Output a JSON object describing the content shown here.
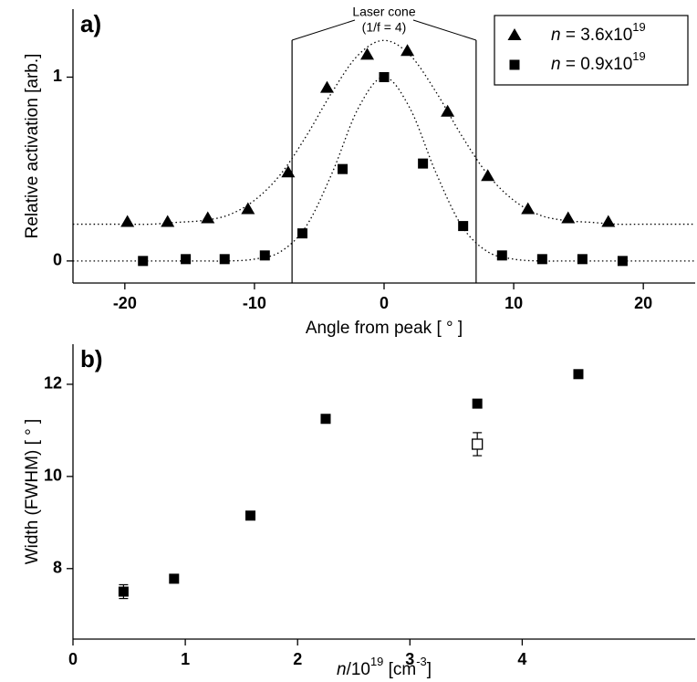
{
  "chart_data": [
    {
      "type": "scatter",
      "label": "a)",
      "x_label": "Angle from peak [ ° ]",
      "y_label": "Relative activation [arb.]",
      "xlim": [
        -24,
        24
      ],
      "ylim": [
        -0.12,
        1.37
      ],
      "xticks": [
        -20,
        -10,
        0,
        10,
        20
      ],
      "yticks": [
        0,
        1
      ],
      "legend": "top-right",
      "series": [
        {
          "name": [
            {
              "text": "n",
              "style": "italic"
            },
            {
              "text": " = 3.6x10",
              "style": "normal"
            },
            {
              "text": "19",
              "style": "sup"
            }
          ],
          "marker": "triangle",
          "color": "#000000",
          "x": [
            -19.8,
            -16.7,
            -13.6,
            -10.5,
            -7.4,
            -4.4,
            -1.3,
            1.8,
            4.9,
            8.0,
            11.1,
            14.2,
            17.3
          ],
          "values": [
            0.21,
            0.21,
            0.23,
            0.28,
            0.48,
            0.94,
            1.12,
            1.14,
            0.81,
            0.46,
            0.28,
            0.23,
            0.21
          ]
        },
        {
          "name": [
            {
              "text": "n",
              "style": "italic"
            },
            {
              "text": " = 0.9x10",
              "style": "normal"
            },
            {
              "text": "19",
              "style": "sup"
            }
          ],
          "marker": "square",
          "color": "#000000",
          "x": [
            -18.6,
            -15.3,
            -12.3,
            -9.2,
            -6.3,
            -3.2,
            0,
            3.0,
            6.1,
            9.1,
            12.2,
            15.3,
            18.4
          ],
          "values": [
            0,
            0.01,
            0.01,
            0.03,
            0.15,
            0.5,
            1.0,
            0.53,
            0.19,
            0.03,
            0.01,
            0.01,
            0
          ]
        }
      ],
      "fits": [
        {
          "x": [
            -24,
            -22,
            -20,
            -18,
            -16,
            -14,
            -12,
            -10,
            -8,
            -6,
            -4,
            -2,
            0,
            2,
            4,
            6,
            8,
            10,
            12,
            14,
            16,
            18,
            20,
            22,
            24
          ],
          "values": [
            0.2,
            0.2,
            0.2,
            0.2,
            0.21,
            0.22,
            0.25,
            0.33,
            0.47,
            0.68,
            0.92,
            1.12,
            1.2,
            1.12,
            0.92,
            0.68,
            0.47,
            0.33,
            0.25,
            0.22,
            0.21,
            0.2,
            0.2,
            0.2,
            0.2
          ]
        },
        {
          "x": [
            -24,
            -22,
            -20,
            -18,
            -16,
            -14,
            -12,
            -10,
            -8,
            -6,
            -4,
            -2,
            0,
            2,
            4,
            6,
            8,
            10,
            12,
            14,
            16,
            18,
            20,
            22,
            24
          ],
          "values": [
            0,
            0,
            0,
            0,
            0,
            0,
            0,
            0.01,
            0.05,
            0.19,
            0.48,
            0.83,
            1,
            0.83,
            0.48,
            0.19,
            0.05,
            0.01,
            0,
            0,
            0,
            0,
            0,
            0,
            0
          ]
        }
      ],
      "annotation": {
        "lines": [
          "Laser cone",
          "(1/f = 4)"
        ],
        "x": [
          -7.1,
          7.1
        ]
      }
    },
    {
      "type": "scatter",
      "label": "b)",
      "x_label": [
        {
          "text": "n",
          "style": "italic"
        },
        {
          "text": "/10",
          "style": "normal"
        },
        {
          "text": "19",
          "style": "sup"
        },
        {
          "text": " [cm",
          "style": "normal"
        },
        {
          "text": "-3",
          "style": "sup"
        },
        {
          "text": "]",
          "style": "normal"
        }
      ],
      "y_label": "Width (FWHM) [ ° ]",
      "xlim": [
        0,
        5.54
      ],
      "ylim": [
        6.47,
        12.87
      ],
      "xticks": [
        0,
        1,
        2,
        3,
        4
      ],
      "yticks": [
        8,
        10,
        12
      ],
      "series": [
        {
          "marker": "square",
          "color": "#000000",
          "x": [
            0.45,
            0.9,
            1.58,
            2.25,
            3.6,
            4.5
          ],
          "values": [
            7.5,
            7.78,
            9.15,
            11.25,
            11.58,
            12.22
          ],
          "errors": [
            0.15,
            0.05,
            0.05,
            0.05,
            0.05,
            0.05
          ]
        },
        {
          "marker": "open-square",
          "color": "#000000",
          "x": [
            3.6
          ],
          "values": [
            10.7
          ],
          "errors": [
            0.25
          ]
        }
      ]
    }
  ]
}
